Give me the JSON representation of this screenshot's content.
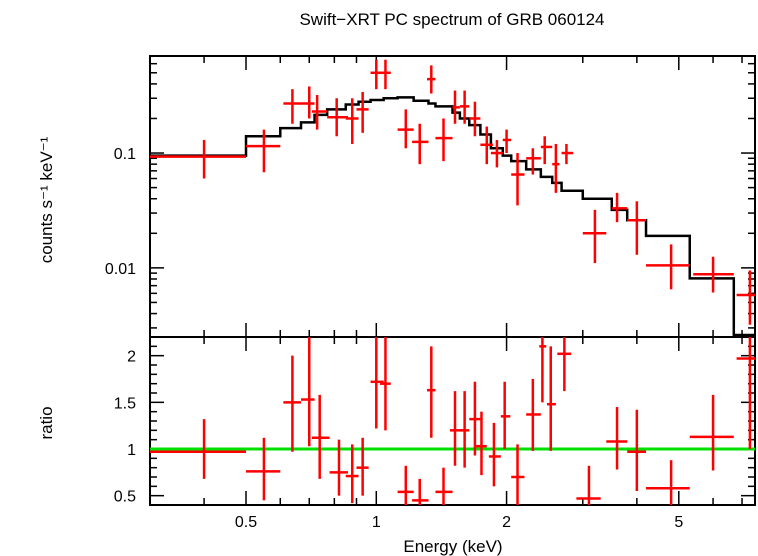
{
  "chart_data": [
    {
      "type": "line",
      "title": "Swift−XRT PC spectrum of GRB 060124",
      "ylabel": "counts s⁻¹ keV⁻¹",
      "xscale": "log",
      "yscale": "log",
      "xlim": [
        0.3,
        7.5
      ],
      "ylim": [
        0.0025,
        0.7
      ],
      "yticks": [
        {
          "value": 0.1,
          "label": "0.1"
        },
        {
          "value": 0.01,
          "label": "0.01"
        }
      ],
      "series": [
        {
          "kind": "errorbars",
          "color": "#ff0000",
          "points": [
            {
              "x": 0.4,
              "xlo": 0.3,
              "xhi": 0.5,
              "y": 0.093,
              "ylo": 0.06,
              "yhi": 0.13
            },
            {
              "x": 0.55,
              "xlo": 0.5,
              "xhi": 0.6,
              "y": 0.115,
              "ylo": 0.068,
              "yhi": 0.16
            },
            {
              "x": 0.64,
              "xlo": 0.61,
              "xhi": 0.67,
              "y": 0.27,
              "ylo": 0.18,
              "yhi": 0.36
            },
            {
              "x": 0.7,
              "xlo": 0.67,
              "xhi": 0.72,
              "y": 0.27,
              "ylo": 0.2,
              "yhi": 0.38
            },
            {
              "x": 0.73,
              "xlo": 0.71,
              "xhi": 0.77,
              "y": 0.23,
              "ylo": 0.16,
              "yhi": 0.32
            },
            {
              "x": 0.81,
              "xlo": 0.77,
              "xhi": 0.86,
              "y": 0.205,
              "ylo": 0.14,
              "yhi": 0.3
            },
            {
              "x": 0.88,
              "xlo": 0.85,
              "xhi": 0.91,
              "y": 0.2,
              "ylo": 0.12,
              "yhi": 0.3
            },
            {
              "x": 0.93,
              "xlo": 0.9,
              "xhi": 0.96,
              "y": 0.24,
              "ylo": 0.15,
              "yhi": 0.34
            },
            {
              "x": 1.0,
              "xlo": 0.97,
              "xhi": 1.04,
              "y": 0.5,
              "ylo": 0.36,
              "yhi": 0.65
            },
            {
              "x": 1.05,
              "xlo": 1.02,
              "xhi": 1.08,
              "y": 0.5,
              "ylo": 0.36,
              "yhi": 0.65
            },
            {
              "x": 1.17,
              "xlo": 1.12,
              "xhi": 1.22,
              "y": 0.16,
              "ylo": 0.11,
              "yhi": 0.24
            },
            {
              "x": 1.26,
              "xlo": 1.21,
              "xhi": 1.32,
              "y": 0.125,
              "ylo": 0.08,
              "yhi": 0.18
            },
            {
              "x": 1.34,
              "xlo": 1.31,
              "xhi": 1.37,
              "y": 0.44,
              "ylo": 0.33,
              "yhi": 0.58
            },
            {
              "x": 1.43,
              "xlo": 1.37,
              "xhi": 1.5,
              "y": 0.135,
              "ylo": 0.085,
              "yhi": 0.2
            },
            {
              "x": 1.52,
              "xlo": 1.5,
              "xhi": 1.56,
              "y": 0.25,
              "ylo": 0.18,
              "yhi": 0.35
            },
            {
              "x": 1.6,
              "xlo": 1.56,
              "xhi": 1.64,
              "y": 0.255,
              "ylo": 0.18,
              "yhi": 0.35
            },
            {
              "x": 1.69,
              "xlo": 1.64,
              "xhi": 1.74,
              "y": 0.2,
              "ylo": 0.14,
              "yhi": 0.28
            },
            {
              "x": 1.8,
              "xlo": 1.74,
              "xhi": 1.86,
              "y": 0.118,
              "ylo": 0.08,
              "yhi": 0.17
            },
            {
              "x": 1.9,
              "xlo": 1.84,
              "xhi": 1.96,
              "y": 0.1,
              "ylo": 0.075,
              "yhi": 0.13
            },
            {
              "x": 2.0,
              "xlo": 1.96,
              "xhi": 2.05,
              "y": 0.13,
              "ylo": 0.1,
              "yhi": 0.16
            },
            {
              "x": 2.12,
              "xlo": 2.05,
              "xhi": 2.2,
              "y": 0.065,
              "ylo": 0.035,
              "yhi": 0.1
            },
            {
              "x": 2.3,
              "xlo": 2.22,
              "xhi": 2.4,
              "y": 0.09,
              "ylo": 0.065,
              "yhi": 0.11
            },
            {
              "x": 2.45,
              "xlo": 2.4,
              "xhi": 2.55,
              "y": 0.113,
              "ylo": 0.08,
              "yhi": 0.14
            },
            {
              "x": 2.6,
              "xlo": 2.55,
              "xhi": 2.65,
              "y": 0.08,
              "ylo": 0.045,
              "yhi": 0.12
            },
            {
              "x": 2.75,
              "xlo": 2.68,
              "xhi": 2.85,
              "y": 0.1,
              "ylo": 0.08,
              "yhi": 0.12
            },
            {
              "x": 3.2,
              "xlo": 3.0,
              "xhi": 3.4,
              "y": 0.02,
              "ylo": 0.011,
              "yhi": 0.032
            },
            {
              "x": 3.6,
              "xlo": 3.5,
              "xhi": 3.8,
              "y": 0.033,
              "ylo": 0.025,
              "yhi": 0.045
            },
            {
              "x": 4.0,
              "xlo": 3.8,
              "xhi": 4.2,
              "y": 0.026,
              "ylo": 0.013,
              "yhi": 0.038
            },
            {
              "x": 4.8,
              "xlo": 4.2,
              "xhi": 5.3,
              "y": 0.0105,
              "ylo": 0.0065,
              "yhi": 0.016
            },
            {
              "x": 6.0,
              "xlo": 5.4,
              "xhi": 6.7,
              "y": 0.0088,
              "ylo": 0.0061,
              "yhi": 0.0125
            },
            {
              "x": 7.3,
              "xlo": 6.8,
              "xhi": 7.5,
              "y": 0.0058,
              "ylo": 0.0032,
              "yhi": 0.0095
            }
          ]
        },
        {
          "kind": "step",
          "color": "#000000",
          "bins": [
            {
              "xlo": 0.3,
              "xhi": 0.5,
              "y": 0.095
            },
            {
              "xlo": 0.5,
              "xhi": 0.6,
              "y": 0.14
            },
            {
              "xlo": 0.6,
              "xhi": 0.67,
              "y": 0.165
            },
            {
              "xlo": 0.67,
              "xhi": 0.72,
              "y": 0.185
            },
            {
              "xlo": 0.72,
              "xhi": 0.77,
              "y": 0.215
            },
            {
              "xlo": 0.77,
              "xhi": 0.85,
              "y": 0.24
            },
            {
              "xlo": 0.85,
              "xhi": 0.91,
              "y": 0.265
            },
            {
              "xlo": 0.91,
              "xhi": 0.97,
              "y": 0.28
            },
            {
              "xlo": 0.97,
              "xhi": 1.04,
              "y": 0.29
            },
            {
              "xlo": 1.04,
              "xhi": 1.12,
              "y": 0.3
            },
            {
              "xlo": 1.12,
              "xhi": 1.22,
              "y": 0.305
            },
            {
              "xlo": 1.22,
              "xhi": 1.32,
              "y": 0.285
            },
            {
              "xlo": 1.32,
              "xhi": 1.37,
              "y": 0.27
            },
            {
              "xlo": 1.37,
              "xhi": 1.5,
              "y": 0.255
            },
            {
              "xlo": 1.5,
              "xhi": 1.56,
              "y": 0.225
            },
            {
              "xlo": 1.56,
              "xhi": 1.64,
              "y": 0.2
            },
            {
              "xlo": 1.64,
              "xhi": 1.74,
              "y": 0.175
            },
            {
              "xlo": 1.74,
              "xhi": 1.84,
              "y": 0.145
            },
            {
              "xlo": 1.84,
              "xhi": 1.96,
              "y": 0.11
            },
            {
              "xlo": 1.96,
              "xhi": 2.05,
              "y": 0.095
            },
            {
              "xlo": 2.05,
              "xhi": 2.22,
              "y": 0.085
            },
            {
              "xlo": 2.22,
              "xhi": 2.4,
              "y": 0.072
            },
            {
              "xlo": 2.4,
              "xhi": 2.55,
              "y": 0.062
            },
            {
              "xlo": 2.55,
              "xhi": 2.68,
              "y": 0.055
            },
            {
              "xlo": 2.68,
              "xhi": 3.0,
              "y": 0.047
            },
            {
              "xlo": 3.0,
              "xhi": 3.5,
              "y": 0.04
            },
            {
              "xlo": 3.5,
              "xhi": 3.8,
              "y": 0.032
            },
            {
              "xlo": 3.8,
              "xhi": 4.2,
              "y": 0.026
            },
            {
              "xlo": 4.2,
              "xhi": 5.3,
              "y": 0.019
            },
            {
              "xlo": 5.3,
              "xhi": 6.7,
              "y": 0.0081
            },
            {
              "xlo": 6.7,
              "xhi": 7.5,
              "y": 0.0026
            }
          ]
        }
      ]
    },
    {
      "type": "scatter",
      "ylabel": "ratio",
      "xlabel": "Energy (keV)",
      "xscale": "log",
      "yscale": "linear",
      "xlim": [
        0.3,
        7.5
      ],
      "ylim": [
        0.4,
        2.2
      ],
      "xticks": [
        {
          "value": 0.5,
          "label": "0.5"
        },
        {
          "value": 1,
          "label": "1"
        },
        {
          "value": 2,
          "label": "2"
        },
        {
          "value": 5,
          "label": "5"
        }
      ],
      "yticks": [
        {
          "value": 0.5,
          "label": "0.5"
        },
        {
          "value": 1,
          "label": "1"
        },
        {
          "value": 1.5,
          "label": "1.5"
        },
        {
          "value": 2,
          "label": "2"
        }
      ],
      "reference_line": {
        "y": 1,
        "color": "#00e000"
      },
      "series": [
        {
          "kind": "errorbars",
          "color": "#ff0000",
          "points": [
            {
              "x": 0.4,
              "xlo": 0.3,
              "xhi": 0.5,
              "y": 0.97,
              "ylo": 0.68,
              "yhi": 1.32
            },
            {
              "x": 0.55,
              "xlo": 0.5,
              "xhi": 0.6,
              "y": 0.76,
              "ylo": 0.45,
              "yhi": 1.12
            },
            {
              "x": 0.64,
              "xlo": 0.61,
              "xhi": 0.67,
              "y": 1.5,
              "ylo": 0.97,
              "yhi": 2.0
            },
            {
              "x": 0.7,
              "xlo": 0.67,
              "xhi": 0.72,
              "y": 1.53,
              "ylo": 1.03,
              "yhi": 2.2
            },
            {
              "x": 0.74,
              "xlo": 0.71,
              "xhi": 0.78,
              "y": 1.12,
              "ylo": 0.68,
              "yhi": 1.58
            },
            {
              "x": 0.82,
              "xlo": 0.78,
              "xhi": 0.86,
              "y": 0.75,
              "ylo": 0.5,
              "yhi": 1.1
            },
            {
              "x": 0.88,
              "xlo": 0.85,
              "xhi": 0.91,
              "y": 0.71,
              "ylo": 0.42,
              "yhi": 1.05
            },
            {
              "x": 0.93,
              "xlo": 0.9,
              "xhi": 0.96,
              "y": 0.8,
              "ylo": 0.5,
              "yhi": 1.12
            },
            {
              "x": 1.0,
              "xlo": 0.97,
              "xhi": 1.04,
              "y": 1.72,
              "ylo": 1.22,
              "yhi": 2.2
            },
            {
              "x": 1.05,
              "xlo": 1.02,
              "xhi": 1.08,
              "y": 1.7,
              "ylo": 1.2,
              "yhi": 2.2
            },
            {
              "x": 1.17,
              "xlo": 1.12,
              "xhi": 1.22,
              "y": 0.54,
              "ylo": 0.4,
              "yhi": 0.82
            },
            {
              "x": 1.26,
              "xlo": 1.21,
              "xhi": 1.32,
              "y": 0.45,
              "ylo": 0.4,
              "yhi": 0.68
            },
            {
              "x": 1.34,
              "xlo": 1.31,
              "xhi": 1.37,
              "y": 1.63,
              "ylo": 1.12,
              "yhi": 2.1
            },
            {
              "x": 1.43,
              "xlo": 1.37,
              "xhi": 1.5,
              "y": 0.54,
              "ylo": 0.4,
              "yhi": 0.8
            },
            {
              "x": 1.52,
              "xlo": 1.48,
              "xhi": 1.58,
              "y": 1.2,
              "ylo": 0.82,
              "yhi": 1.62
            },
            {
              "x": 1.6,
              "xlo": 1.56,
              "xhi": 1.64,
              "y": 1.2,
              "ylo": 0.8,
              "yhi": 1.62
            },
            {
              "x": 1.69,
              "xlo": 1.64,
              "xhi": 1.74,
              "y": 1.32,
              "ylo": 0.93,
              "yhi": 1.72
            },
            {
              "x": 1.75,
              "xlo": 1.7,
              "xhi": 1.8,
              "y": 1.03,
              "ylo": 0.72,
              "yhi": 1.4
            },
            {
              "x": 1.87,
              "xlo": 1.82,
              "xhi": 1.94,
              "y": 0.92,
              "ylo": 0.6,
              "yhi": 1.28
            },
            {
              "x": 1.98,
              "xlo": 1.94,
              "xhi": 2.04,
              "y": 1.35,
              "ylo": 1.0,
              "yhi": 1.72
            },
            {
              "x": 2.12,
              "xlo": 2.05,
              "xhi": 2.2,
              "y": 0.7,
              "ylo": 0.4,
              "yhi": 1.05
            },
            {
              "x": 2.3,
              "xlo": 2.22,
              "xhi": 2.4,
              "y": 1.37,
              "ylo": 0.98,
              "yhi": 1.75
            },
            {
              "x": 2.42,
              "xlo": 2.38,
              "xhi": 2.47,
              "y": 2.1,
              "ylo": 1.5,
              "yhi": 2.2
            },
            {
              "x": 2.53,
              "xlo": 2.48,
              "xhi": 2.6,
              "y": 1.48,
              "ylo": 0.98,
              "yhi": 2.1
            },
            {
              "x": 2.72,
              "xlo": 2.62,
              "xhi": 2.82,
              "y": 2.02,
              "ylo": 1.62,
              "yhi": 2.2
            },
            {
              "x": 3.1,
              "xlo": 2.9,
              "xhi": 3.3,
              "y": 0.47,
              "ylo": 0.4,
              "yhi": 0.82
            },
            {
              "x": 3.6,
              "xlo": 3.4,
              "xhi": 3.8,
              "y": 1.08,
              "ylo": 0.78,
              "yhi": 1.45
            },
            {
              "x": 4.0,
              "xlo": 3.8,
              "xhi": 4.2,
              "y": 0.97,
              "ylo": 0.55,
              "yhi": 1.42
            },
            {
              "x": 4.8,
              "xlo": 4.2,
              "xhi": 5.3,
              "y": 0.58,
              "ylo": 0.4,
              "yhi": 0.88
            },
            {
              "x": 6.0,
              "xlo": 5.3,
              "xhi": 6.7,
              "y": 1.13,
              "ylo": 0.77,
              "yhi": 1.58
            },
            {
              "x": 7.3,
              "xlo": 6.8,
              "xhi": 7.5,
              "y": 1.97,
              "ylo": 1.0,
              "yhi": 2.2
            }
          ]
        }
      ]
    }
  ]
}
